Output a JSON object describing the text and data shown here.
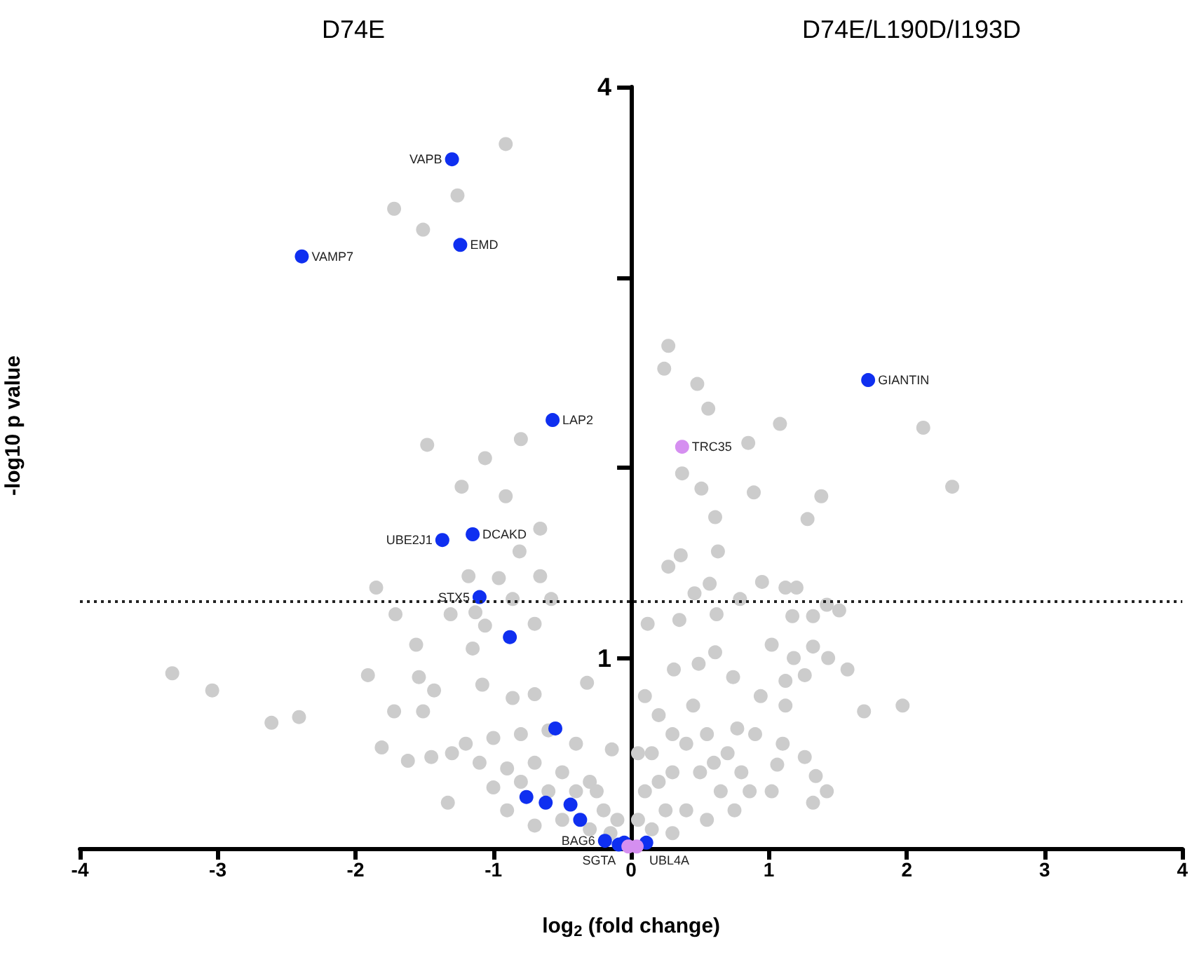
{
  "chart_data": {
    "type": "scatter",
    "xlabel": "log$_{2}$ (fold change)",
    "ylabel": "-log10 p value",
    "xlim": [
      -4,
      4
    ],
    "xticks": [
      -4,
      -3,
      -2,
      -1,
      0,
      1,
      2,
      3,
      4
    ],
    "ylim": [
      0,
      4
    ],
    "yticks": [
      {
        "value": 0,
        "label": null
      },
      1,
      {
        "value": 2,
        "label": null
      },
      {
        "value": 3,
        "label": null
      },
      4
    ],
    "marker": "circle",
    "ref_lines": [
      {
        "axis": "y",
        "value": 1.3,
        "line_style": "dotted",
        "color": "#222222"
      }
    ],
    "annotations": [
      "D74E",
      "D74E/L190D/I193D",
      {
        "text": "VAPB",
        "x": -1.3,
        "y": 3.62
      },
      {
        "text": "EMD",
        "x": -1.24,
        "y": 3.17
      },
      {
        "text": "VAMP7",
        "x": -2.39,
        "y": 3.11
      },
      {
        "text": "LAP2",
        "x": -0.57,
        "y": 2.25
      },
      {
        "text": "DCAKD",
        "x": -1.15,
        "y": 1.65
      },
      {
        "text": "UBE2J1",
        "x": -1.37,
        "y": 1.62
      },
      {
        "text": "STX5",
        "x": -1.1,
        "y": 1.32
      },
      {
        "text": "GIANTIN",
        "x": 1.72,
        "y": 2.46
      },
      {
        "text": "TRC35",
        "x": 0.37,
        "y": 2.11
      },
      {
        "text": "BAG6",
        "x": -0.19,
        "y": 0.04
      },
      {
        "text": "SGTA",
        "x": -0.02,
        "y": 0.01
      },
      {
        "text": "UBL4A",
        "x": 0.04,
        "y": 0.01
      }
    ],
    "series": [
      {
        "color": "#cccccc",
        "x": [
          -0.91,
          -1.26,
          -1.72,
          -1.51,
          -1.48,
          -1.06,
          -0.8,
          -1.23,
          -0.91,
          -0.66,
          -0.81,
          -1.18,
          -0.96,
          -0.66,
          -1.85,
          -0.58,
          -0.86,
          -1.71,
          -1.31,
          -1.13,
          -1.06,
          -0.7,
          -1.56,
          -1.15,
          -3.33,
          -3.04,
          -2.61,
          -2.41,
          -1.91,
          -1.72,
          -1.81,
          -1.54,
          -1.43,
          -1.51,
          -1.62,
          -1.33,
          -1.08,
          -0.86,
          -0.7,
          -0.32,
          -0.14,
          -1.2,
          -1.0,
          -0.8,
          -0.6,
          -0.4,
          -1.1,
          -0.9,
          -0.7,
          -0.5,
          -0.3,
          -1.0,
          -0.8,
          -0.6,
          -0.4,
          -0.2,
          -0.9,
          -0.5,
          -0.3,
          -0.15,
          -0.7,
          -0.1,
          -0.25,
          -1.3,
          -1.45,
          0.27,
          0.24,
          0.48,
          0.56,
          1.08,
          0.85,
          2.12,
          2.33,
          0.37,
          0.51,
          0.89,
          1.38,
          1.28,
          0.61,
          0.63,
          0.36,
          0.27,
          0.57,
          0.46,
          0.95,
          1.12,
          1.2,
          0.79,
          1.42,
          1.51,
          1.17,
          1.32,
          0.12,
          0.35,
          0.62,
          1.69,
          1.97,
          1.57,
          1.32,
          1.43,
          1.02,
          1.18,
          1.26,
          1.12,
          0.94,
          1.12,
          1.1,
          1.26,
          1.34,
          1.42,
          1.32,
          1.02,
          1.06,
          0.86,
          0.77,
          0.74,
          0.61,
          0.31,
          0.49,
          0.1,
          0.2,
          0.3,
          0.45,
          0.55,
          0.7,
          0.15,
          0.3,
          0.5,
          0.65,
          0.8,
          0.1,
          0.25,
          0.4,
          0.55,
          0.15,
          0.3,
          0.05,
          0.2,
          0.4,
          0.6,
          0.9,
          0.75,
          0.05
        ],
        "values": [
          3.7,
          3.43,
          3.36,
          3.25,
          2.12,
          2.05,
          2.15,
          1.9,
          1.85,
          1.68,
          1.56,
          1.43,
          1.42,
          1.43,
          1.37,
          1.31,
          1.31,
          1.23,
          1.23,
          1.24,
          1.17,
          1.18,
          1.07,
          1.05,
          0.92,
          0.83,
          0.66,
          0.69,
          0.91,
          0.72,
          0.53,
          0.9,
          0.83,
          0.72,
          0.46,
          0.24,
          0.86,
          0.79,
          0.81,
          0.87,
          0.52,
          0.55,
          0.58,
          0.6,
          0.62,
          0.55,
          0.45,
          0.42,
          0.45,
          0.4,
          0.35,
          0.32,
          0.35,
          0.3,
          0.3,
          0.2,
          0.2,
          0.15,
          0.1,
          0.08,
          0.12,
          0.15,
          0.3,
          0.5,
          0.48,
          2.64,
          2.52,
          2.44,
          2.31,
          2.23,
          2.13,
          2.21,
          1.9,
          1.97,
          1.89,
          1.87,
          1.85,
          1.73,
          1.74,
          1.56,
          1.54,
          1.48,
          1.39,
          1.34,
          1.4,
          1.37,
          1.37,
          1.31,
          1.28,
          1.25,
          1.22,
          1.22,
          1.18,
          1.2,
          1.23,
          0.72,
          0.75,
          0.94,
          1.06,
          1.0,
          1.07,
          1.0,
          0.91,
          0.88,
          0.8,
          0.75,
          0.55,
          0.48,
          0.38,
          0.3,
          0.24,
          0.3,
          0.44,
          0.3,
          0.63,
          0.9,
          1.03,
          0.94,
          0.97,
          0.8,
          0.7,
          0.6,
          0.75,
          0.6,
          0.5,
          0.5,
          0.4,
          0.4,
          0.3,
          0.4,
          0.3,
          0.2,
          0.2,
          0.15,
          0.1,
          0.08,
          0.15,
          0.35,
          0.55,
          0.45,
          0.6,
          0.2,
          0.5
        ]
      },
      {
        "color": "#0f2ff0",
        "x": [
          -1.3,
          -1.24,
          -2.39,
          -0.57,
          -1.15,
          -1.37,
          -1.1,
          1.72,
          -0.88,
          -0.55,
          -0.76,
          -0.62,
          -0.44,
          -0.37,
          -0.19,
          -0.09,
          -0.05,
          0.11
        ],
        "values": [
          3.62,
          3.17,
          3.11,
          2.25,
          1.65,
          1.62,
          1.32,
          2.46,
          1.11,
          0.63,
          0.27,
          0.24,
          0.23,
          0.15,
          0.04,
          0.02,
          0.03,
          0.03
        ]
      },
      {
        "color": "#d58ff0",
        "x": [
          0.37,
          -0.02,
          0.04
        ],
        "values": [
          2.11,
          0.01,
          0.01
        ]
      }
    ]
  }
}
